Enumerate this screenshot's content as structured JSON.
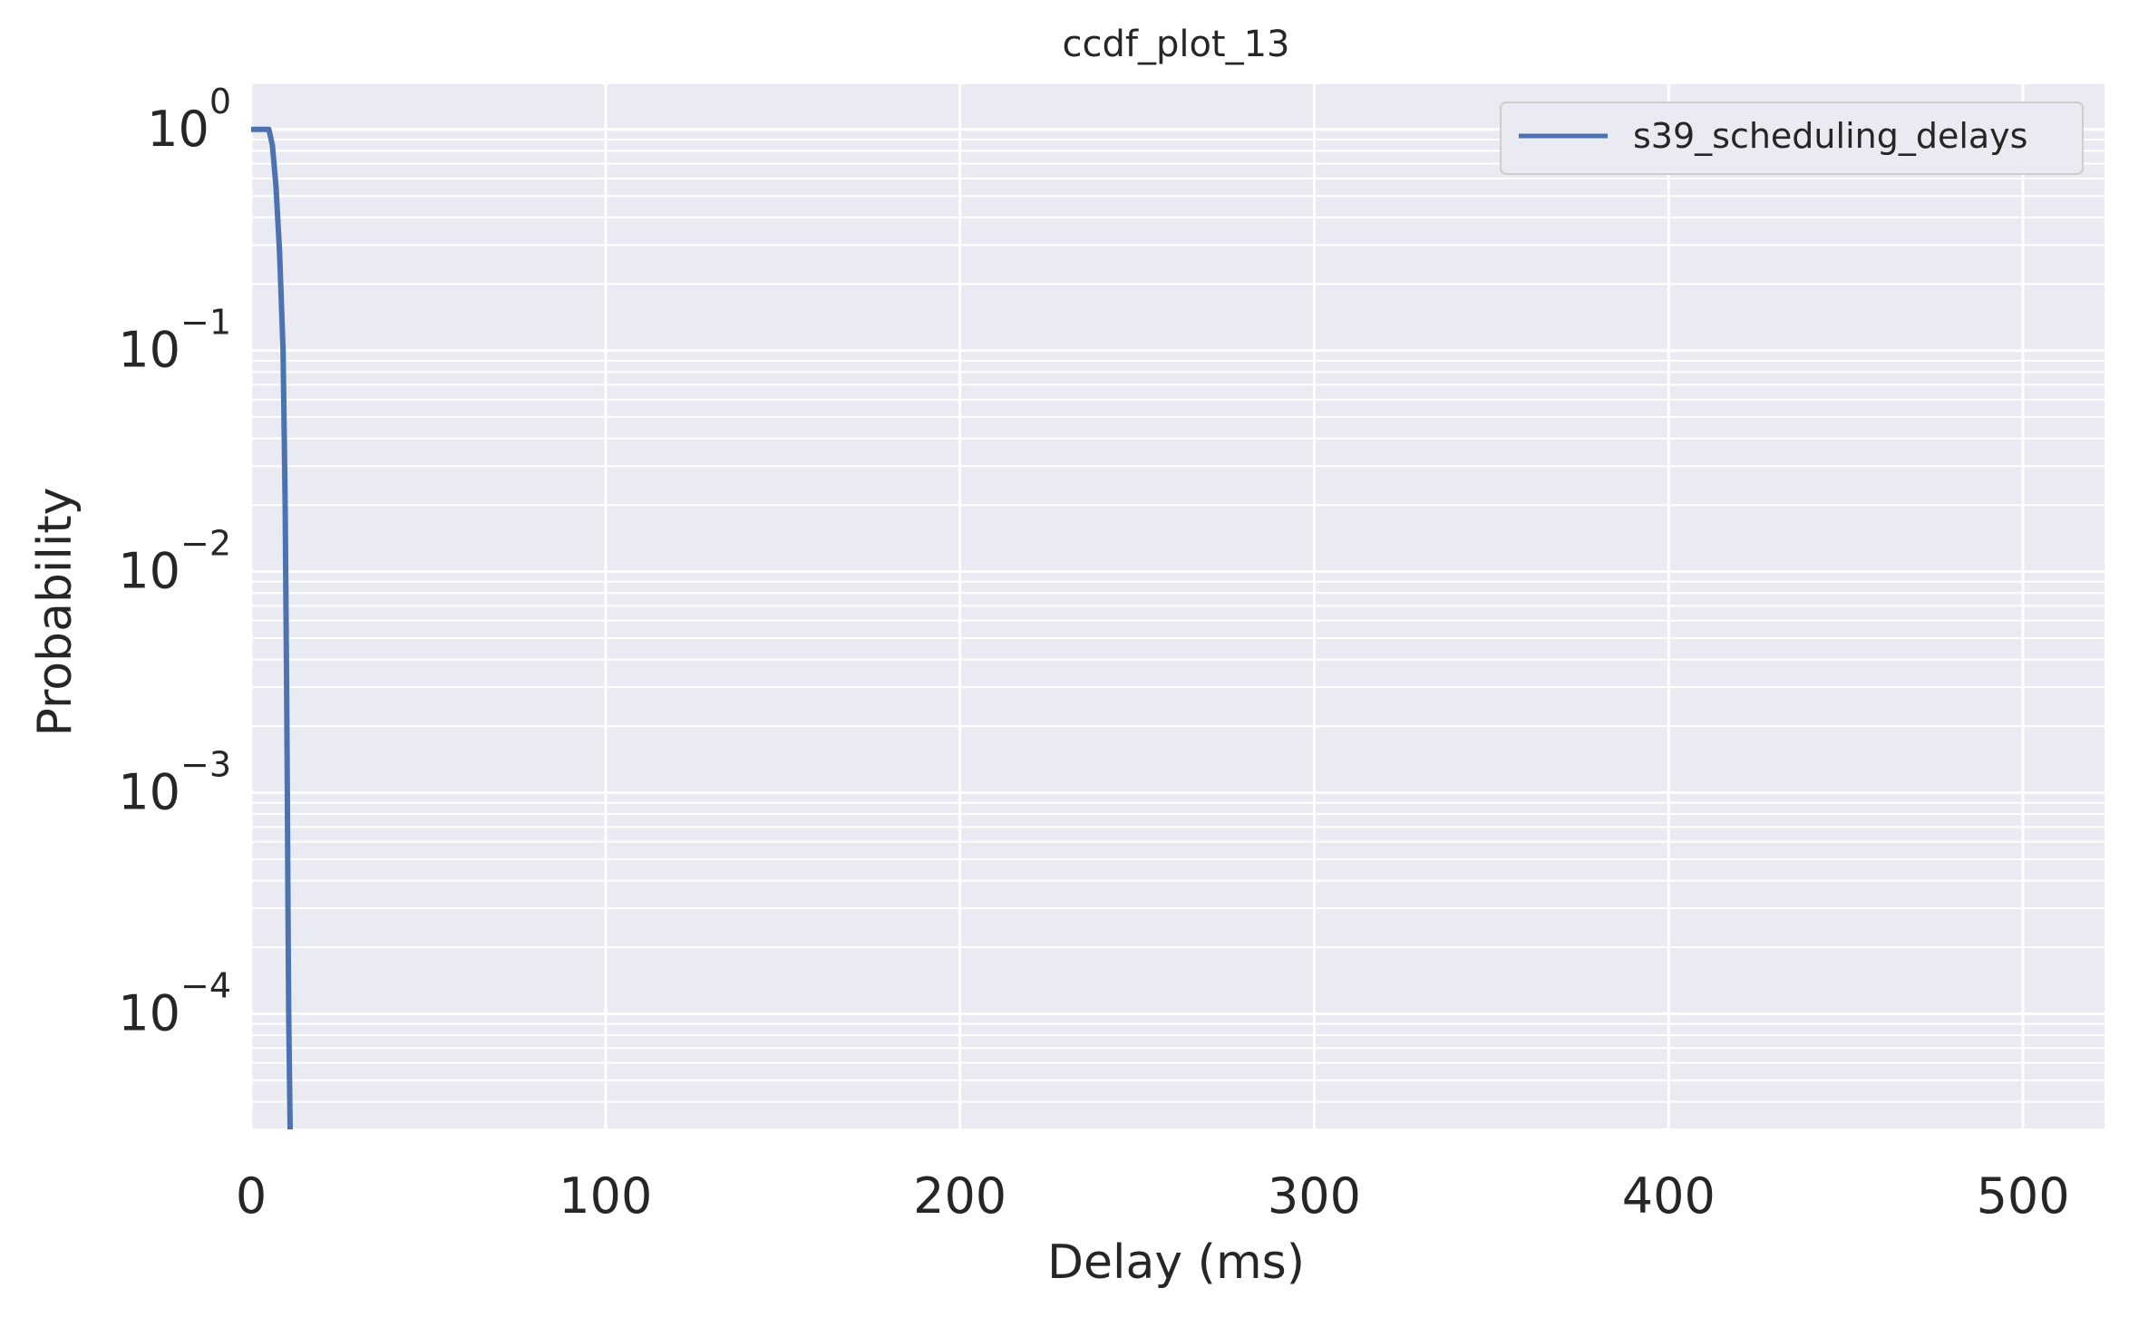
{
  "chart_data": {
    "type": "line",
    "title": "ccdf_plot_13",
    "xlabel": "Delay (ms)",
    "ylabel": "Probability",
    "xscale": "linear",
    "yscale": "log",
    "xlim": [
      0,
      523
    ],
    "ylim": [
      3e-05,
      1.6
    ],
    "xticks": [
      0,
      100,
      200,
      300,
      400,
      500
    ],
    "xtick_labels": [
      "0",
      "100",
      "200",
      "300",
      "400",
      "500"
    ],
    "yticks": [
      1,
      0.1,
      0.01,
      0.001,
      0.0001
    ],
    "ytick_labels": [
      {
        "base": "10",
        "exp": "0"
      },
      {
        "base": "10",
        "exp": "−1"
      },
      {
        "base": "10",
        "exp": "−2"
      },
      {
        "base": "10",
        "exp": "−3"
      },
      {
        "base": "10",
        "exp": "−4"
      }
    ],
    "grid": true,
    "legend_position": "top-right",
    "colors": {
      "background": "#eaeaf2",
      "grid": "#ffffff",
      "line": "#4c72b0"
    },
    "series": [
      {
        "name": "s39_scheduling_delays",
        "color": "#4c72b0",
        "x": [
          0,
          5,
          6,
          7,
          8,
          9,
          9.6,
          10,
          10.2,
          10.4,
          10.6,
          11.0
        ],
        "y": [
          1,
          1,
          0.85,
          0.55,
          0.28,
          0.1,
          0.02,
          0.003,
          0.001,
          0.0003,
          0.0001,
          3e-05
        ]
      }
    ]
  }
}
